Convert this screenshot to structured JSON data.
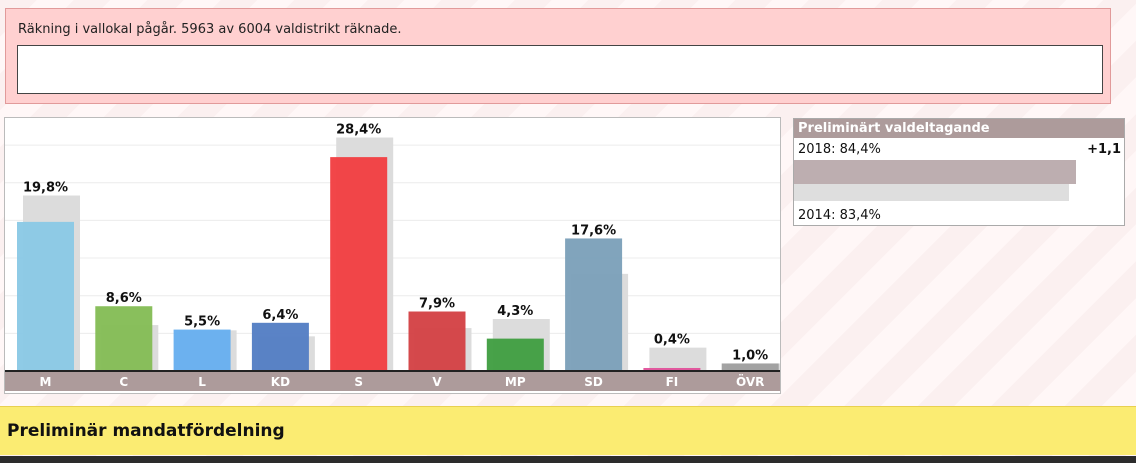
{
  "status": {
    "text": "Räkning i vallokal pågår. 5963 av 6004 valdistrikt räknade.",
    "input_value": ""
  },
  "chart_data": {
    "type": "bar",
    "categories": [
      "M",
      "C",
      "L",
      "KD",
      "S",
      "V",
      "MP",
      "SD",
      "FI",
      "ÖVR"
    ],
    "series": [
      {
        "values": [
          19.8,
          8.6,
          5.5,
          6.4,
          28.4,
          7.9,
          4.3,
          17.6,
          0.4,
          1.0
        ]
      },
      {
        "values": [
          23.3,
          6.1,
          5.4,
          4.6,
          31.0,
          5.7,
          6.9,
          12.9,
          3.1,
          1.0
        ]
      }
    ],
    "labels": [
      "19,8%",
      "8,6%",
      "5,5%",
      "6,4%",
      "28,4%",
      "7,9%",
      "4,3%",
      "17,6%",
      "0,4%",
      "1,0%"
    ],
    "colors": [
      "#89c8e5",
      "#83bc53",
      "#65aeef",
      "#517cc3",
      "#f13c3f",
      "#d33f42",
      "#3e9d3f",
      "#7a9fb8",
      "#e0509a",
      "#9e9e9e"
    ],
    "ylim": [
      0,
      32
    ],
    "grid": true,
    "legend": "none"
  },
  "turnout": {
    "title": "Preliminärt valdeltagande",
    "current_label": "2018: 84,4%",
    "current_value": 84.4,
    "previous_label": "2014: 83,4%",
    "previous_value": 83.4,
    "diff_label": "+1,1"
  },
  "mandate": {
    "title": "Preliminär mandatfördelning"
  },
  "style": {
    "axis_band": "#ad9b9b",
    "shadow_bar": "#dcdcdc",
    "panel_red": "#ffd0d0",
    "mandate_yellow": "#fbec72"
  }
}
